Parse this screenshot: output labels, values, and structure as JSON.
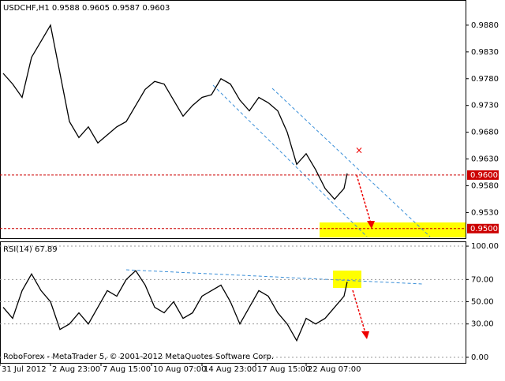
{
  "chart_data": [
    {
      "type": "line",
      "title": "USDCHF,H1  0.9588 0.9605 0.9587 0.9603",
      "x": [
        1,
        4,
        7,
        10,
        13,
        16,
        19,
        22,
        25,
        28,
        31,
        34,
        37,
        40,
        43,
        46,
        49,
        52,
        55,
        58,
        61,
        64,
        67,
        70,
        73,
        76,
        79,
        82,
        85,
        88,
        91,
        94,
        97,
        100,
        103,
        106,
        109,
        110
      ],
      "series": [
        {
          "name": "USDCHF",
          "color": "#000000",
          "values": [
            0.979,
            0.977,
            0.9745,
            0.982,
            0.985,
            0.988,
            0.979,
            0.97,
            0.967,
            0.969,
            0.966,
            0.9675,
            0.969,
            0.97,
            0.973,
            0.976,
            0.9775,
            0.977,
            0.974,
            0.971,
            0.973,
            0.9745,
            0.975,
            0.978,
            0.977,
            0.974,
            0.972,
            0.9745,
            0.9735,
            0.972,
            0.968,
            0.962,
            0.964,
            0.961,
            0.9575,
            0.9555,
            0.9575,
            0.9603
          ]
        }
      ],
      "xlim": [
        0,
        147.5
      ],
      "ylim": [
        0.9482,
        0.9927
      ],
      "xticks": [
        {
          "value": 0,
          "label": "31 Jul 2012"
        },
        {
          "value": 16,
          "label": "2 Aug 23:00"
        },
        {
          "value": 32,
          "label": "7 Aug 15:00"
        },
        {
          "value": 48,
          "label": "10 Aug 07:00"
        },
        {
          "value": 64,
          "label": "14 Aug 23:00"
        },
        {
          "value": 81,
          "label": "17 Aug 15:00"
        },
        {
          "value": 97,
          "label": "22 Aug 07:00"
        }
      ],
      "yticks": [
        {
          "value": 0.953,
          "label": "0.9530"
        },
        {
          "value": 0.958,
          "label": "0.9580"
        },
        {
          "value": 0.963,
          "label": "0.9630"
        },
        {
          "value": 0.968,
          "label": "0.9680"
        },
        {
          "value": 0.973,
          "label": "0.9730"
        },
        {
          "value": 0.978,
          "label": "0.9780"
        },
        {
          "value": 0.983,
          "label": "0.9830"
        },
        {
          "value": 0.988,
          "label": "0.9880"
        }
      ],
      "levels": [
        {
          "value": 0.96,
          "label": "0.9600"
        },
        {
          "value": 0.95,
          "label": "0.9500"
        }
      ],
      "level_color": "#cc0000"
    },
    {
      "type": "line",
      "title": "RSI(14) 67.89",
      "x": [
        1,
        4,
        7,
        10,
        13,
        16,
        19,
        22,
        25,
        28,
        31,
        34,
        37,
        40,
        43,
        46,
        49,
        52,
        55,
        58,
        61,
        64,
        67,
        70,
        73,
        76,
        79,
        82,
        85,
        88,
        91,
        94,
        97,
        100,
        103,
        106,
        109,
        110
      ],
      "series": [
        {
          "name": "RSI(14)",
          "color": "#000000",
          "values": [
            45,
            35,
            60,
            75,
            60,
            50,
            25,
            30,
            40,
            30,
            45,
            60,
            55,
            70,
            78,
            65,
            45,
            40,
            50,
            35,
            40,
            55,
            60,
            65,
            50,
            30,
            45,
            60,
            55,
            40,
            30,
            15,
            35,
            30,
            35,
            45,
            55,
            67.89
          ]
        }
      ],
      "xlim": [
        0,
        147.5
      ],
      "ylim": [
        -5,
        104.3
      ],
      "yticks": [
        {
          "value": 0,
          "label": "0.00"
        },
        {
          "value": 30,
          "label": "30.00"
        },
        {
          "value": 50,
          "label": "50.00"
        },
        {
          "value": 70,
          "label": "70.00"
        },
        {
          "value": 100,
          "label": "100.00"
        }
      ],
      "grid": true,
      "annotation": "RoboForex - MetaTrader 5, © 2001-2012 MetaQuotes Software Corp."
    }
  ]
}
